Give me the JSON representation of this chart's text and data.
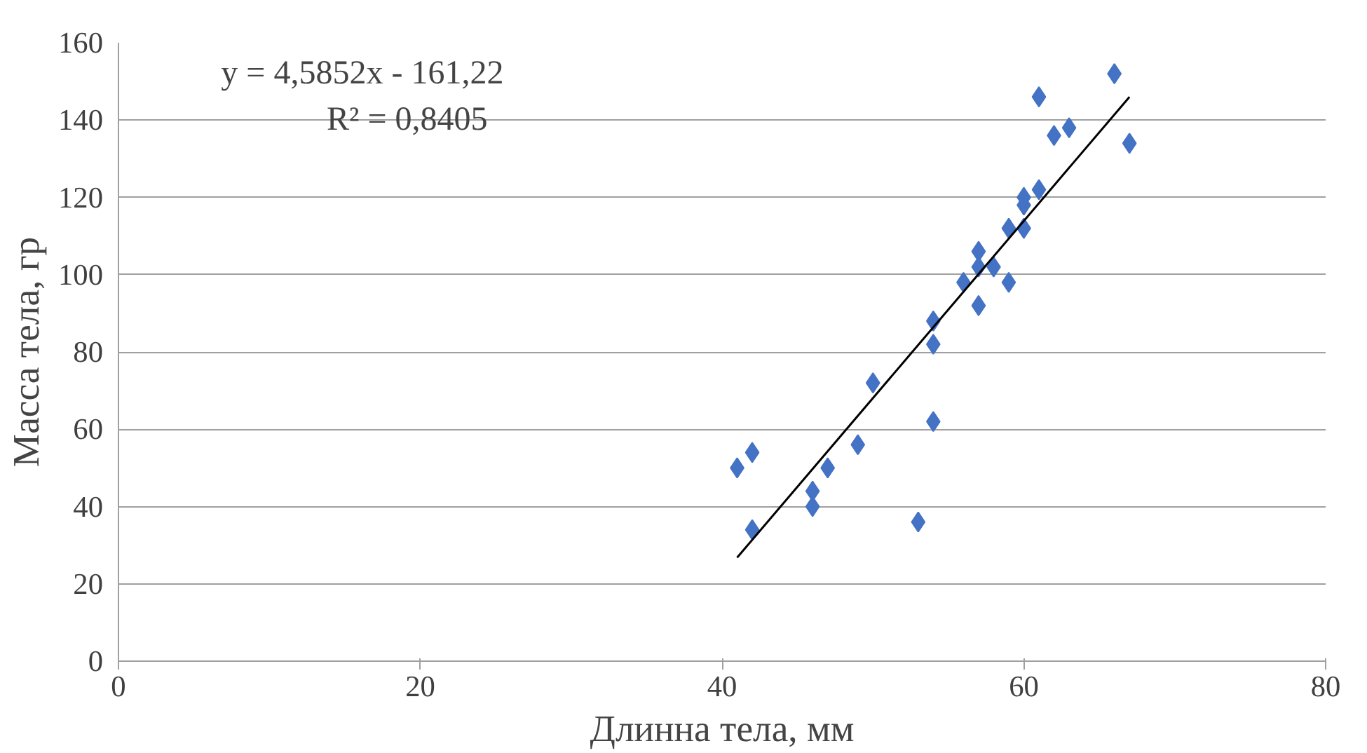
{
  "chart_data": {
    "type": "scatter",
    "xlabel": "Длинна тела, мм",
    "ylabel": "Масса тела, гр",
    "xlim": [
      0,
      80
    ],
    "xticks": [
      0,
      20,
      40,
      60,
      80
    ],
    "ylim": [
      0,
      160
    ],
    "yticks": [
      0,
      20,
      40,
      60,
      80,
      100,
      120,
      140,
      160
    ],
    "grid": "y",
    "marker": "diamond",
    "annotations": [
      "y = 4,5852x - 161,22",
      "R² = 0,8405"
    ],
    "series": [
      {
        "color": "#4472c4",
        "x": [
          41,
          42,
          42,
          46,
          46,
          47,
          49,
          50,
          53,
          54,
          54,
          54,
          56,
          57,
          57,
          57,
          58,
          59,
          59,
          60,
          60,
          60,
          61,
          61,
          62,
          63,
          66,
          67
        ],
        "values": [
          50,
          54,
          34,
          44,
          40,
          50,
          56,
          72,
          36,
          62,
          82,
          88,
          98,
          92,
          102,
          106,
          102,
          112,
          98,
          112,
          118,
          120,
          122,
          146,
          136,
          138,
          152,
          134
        ]
      },
      {
        "type": "line",
        "marker": "none",
        "color": "#000000",
        "x": [
          41,
          67
        ],
        "values": [
          26.8,
          146.0
        ]
      }
    ]
  }
}
